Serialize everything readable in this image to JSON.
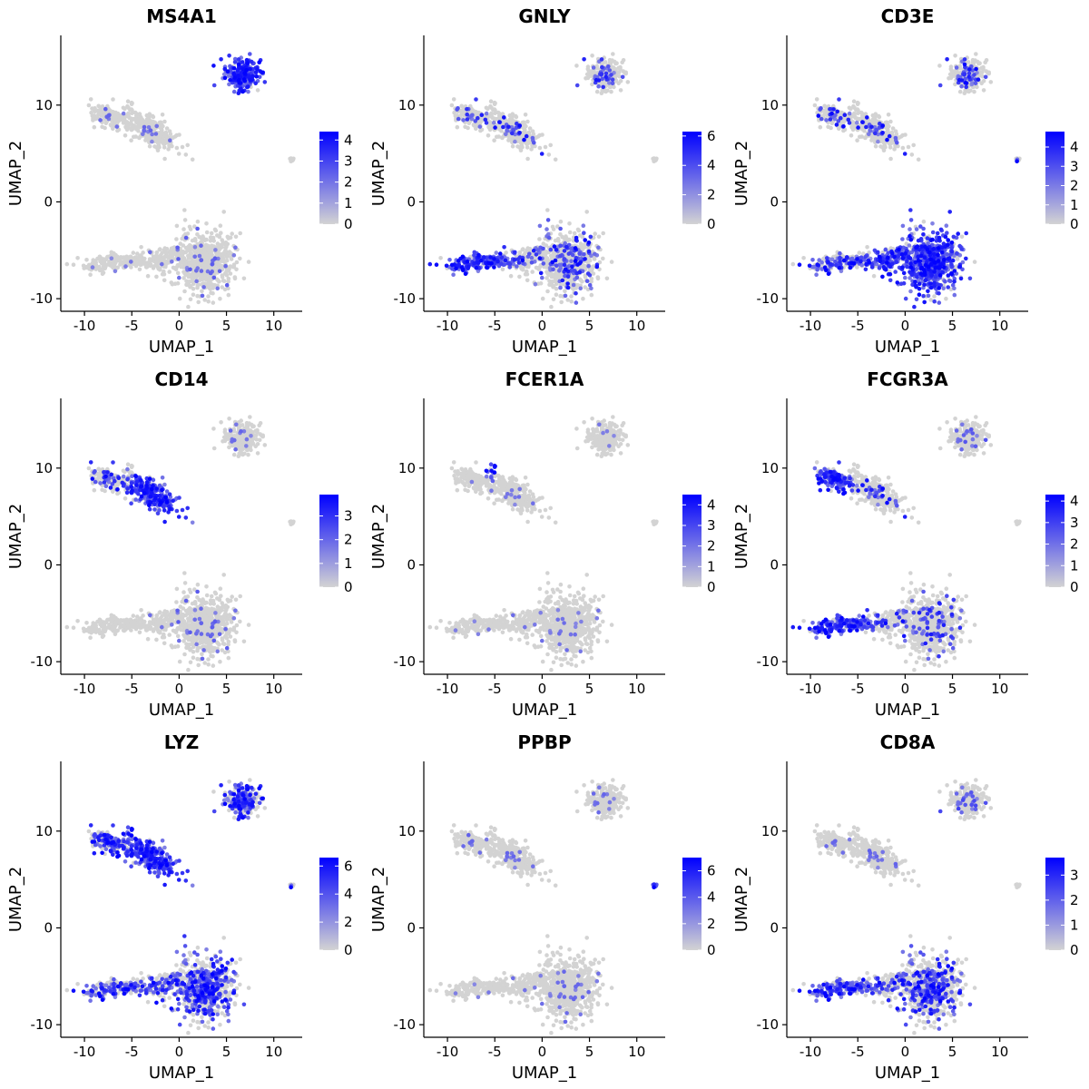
{
  "colors": {
    "low": "#d3d3d3",
    "high": "#0000ff",
    "axis": "#000000"
  },
  "chart_data": [
    {
      "type": "scatter",
      "title": "MS4A1",
      "xlabel": "UMAP_1",
      "ylabel": "UMAP_2",
      "xlim": [
        -12.5,
        13
      ],
      "ylim": [
        -11.3,
        17.2
      ],
      "xticks": [
        -10,
        -5,
        0,
        5,
        10
      ],
      "yticks": [
        -10,
        0,
        10
      ],
      "xtick_labels": [
        "-10",
        "-5",
        "0",
        "5",
        "10"
      ],
      "ytick_labels": [
        "-10",
        "0",
        "10"
      ],
      "legend": {
        "max": 4.4,
        "ticks": [
          0,
          1,
          2,
          3,
          4
        ],
        "labels": [
          "0",
          "1",
          "2",
          "3",
          "4"
        ]
      },
      "expression": {
        "platelet": 0.0,
        "b_cells": 0.9,
        "monocytes": 0.04,
        "mono_tail": 0.05,
        "nk": 0.03,
        "t_cells": 0.05,
        "dc": 0.0
      }
    },
    {
      "type": "scatter",
      "title": "GNLY",
      "xlabel": "UMAP_1",
      "ylabel": "UMAP_2",
      "xlim": [
        -12.5,
        13
      ],
      "ylim": [
        -11.3,
        17.2
      ],
      "xticks": [
        -10,
        -5,
        0,
        5,
        10
      ],
      "yticks": [
        -10,
        0,
        10
      ],
      "xtick_labels": [
        "-10",
        "-5",
        "0",
        "5",
        "10"
      ],
      "ytick_labels": [
        "-10",
        "0",
        "10"
      ],
      "legend": {
        "max": 6.3,
        "ticks": [
          0,
          2,
          4,
          6
        ],
        "labels": [
          "0",
          "2",
          "4",
          "6"
        ]
      },
      "expression": {
        "platelet": 0.0,
        "b_cells": 0.12,
        "monocytes": 0.15,
        "mono_tail": 0.1,
        "nk": 0.85,
        "t_cells": 0.2,
        "dc": 0.0
      }
    },
    {
      "type": "scatter",
      "title": "CD3E",
      "xlabel": "UMAP_1",
      "ylabel": "UMAP_2",
      "xlim": [
        -12.5,
        13
      ],
      "ylim": [
        -11.3,
        17.2
      ],
      "xticks": [
        -10,
        -5,
        0,
        5,
        10
      ],
      "yticks": [
        -10,
        0,
        10
      ],
      "xtick_labels": [
        "-10",
        "-5",
        "0",
        "5",
        "10"
      ],
      "ytick_labels": [
        "-10",
        "0",
        "10"
      ],
      "legend": {
        "max": 4.8,
        "ticks": [
          0,
          1,
          2,
          3,
          4
        ],
        "labels": [
          "0",
          "1",
          "2",
          "3",
          "4"
        ]
      },
      "expression": {
        "platelet": 0.5,
        "b_cells": 0.15,
        "monocytes": 0.15,
        "mono_tail": 0.15,
        "nk": 0.45,
        "t_cells": 0.85,
        "dc": 0.0
      }
    },
    {
      "type": "scatter",
      "title": "CD14",
      "xlabel": "UMAP_1",
      "ylabel": "UMAP_2",
      "xlim": [
        -12.5,
        13
      ],
      "ylim": [
        -11.3,
        17.2
      ],
      "xticks": [
        -10,
        -5,
        0,
        5,
        10
      ],
      "yticks": [
        -10,
        0,
        10
      ],
      "xtick_labels": [
        "-10",
        "-5",
        "0",
        "5",
        "10"
      ],
      "ytick_labels": [
        "-10",
        "0",
        "10"
      ],
      "legend": {
        "max": 3.9,
        "ticks": [
          0,
          1,
          2,
          3
        ],
        "labels": [
          "0",
          "1",
          "2",
          "3"
        ]
      },
      "expression": {
        "platelet": 0.0,
        "b_cells": 0.04,
        "monocytes": 0.85,
        "mono_tail": 0.2,
        "nk": 0.0,
        "t_cells": 0.05,
        "dc": 0.0
      }
    },
    {
      "type": "scatter",
      "title": "FCER1A",
      "xlabel": "UMAP_1",
      "ylabel": "UMAP_2",
      "xlim": [
        -12.5,
        13
      ],
      "ylim": [
        -11.3,
        17.2
      ],
      "xticks": [
        -10,
        -5,
        0,
        5,
        10
      ],
      "yticks": [
        -10,
        0,
        10
      ],
      "xtick_labels": [
        "-10",
        "-5",
        "0",
        "5",
        "10"
      ],
      "ytick_labels": [
        "-10",
        "0",
        "10"
      ],
      "legend": {
        "max": 4.5,
        "ticks": [
          0,
          1,
          2,
          3,
          4
        ],
        "labels": [
          "0",
          "1",
          "2",
          "3",
          "4"
        ]
      },
      "expression": {
        "platelet": 0.0,
        "b_cells": 0.02,
        "monocytes": 0.03,
        "mono_tail": 0.02,
        "nk": 0.02,
        "t_cells": 0.03,
        "dc": 0.9
      }
    },
    {
      "type": "scatter",
      "title": "FCGR3A",
      "xlabel": "UMAP_1",
      "ylabel": "UMAP_2",
      "xlim": [
        -12.5,
        13
      ],
      "ylim": [
        -11.3,
        17.2
      ],
      "xticks": [
        -10,
        -5,
        0,
        5,
        10
      ],
      "yticks": [
        -10,
        0,
        10
      ],
      "xtick_labels": [
        "-10",
        "-5",
        "0",
        "5",
        "10"
      ],
      "ytick_labels": [
        "-10",
        "0",
        "10"
      ],
      "legend": {
        "max": 4.3,
        "ticks": [
          0,
          1,
          2,
          3,
          4
        ],
        "labels": [
          "0",
          "1",
          "2",
          "3",
          "4"
        ]
      },
      "expression": {
        "platelet": 0.0,
        "b_cells": 0.06,
        "monocytes": 0.15,
        "mono_tail": 0.9,
        "nk": 0.85,
        "t_cells": 0.12,
        "dc": 0.0
      }
    },
    {
      "type": "scatter",
      "title": "LYZ",
      "xlabel": "UMAP_1",
      "ylabel": "UMAP_2",
      "xlim": [
        -12.5,
        13
      ],
      "ylim": [
        -11.3,
        17.2
      ],
      "xticks": [
        -10,
        -5,
        0,
        5,
        10
      ],
      "yticks": [
        -10,
        0,
        10
      ],
      "xtick_labels": [
        "-10",
        "-5",
        "0",
        "5",
        "10"
      ],
      "ytick_labels": [
        "-10",
        "0",
        "10"
      ],
      "legend": {
        "max": 6.6,
        "ticks": [
          0,
          2,
          4,
          6
        ],
        "labels": [
          "0",
          "2",
          "4",
          "6"
        ]
      },
      "expression": {
        "platelet": 0.4,
        "b_cells": 0.45,
        "monocytes": 0.9,
        "mono_tail": 0.55,
        "nk": 0.45,
        "t_cells": 0.45,
        "dc": 0.9
      }
    },
    {
      "type": "scatter",
      "title": "PPBP",
      "xlabel": "UMAP_1",
      "ylabel": "UMAP_2",
      "xlim": [
        -12.5,
        13
      ],
      "ylim": [
        -11.3,
        17.2
      ],
      "xticks": [
        -10,
        -5,
        0,
        5,
        10
      ],
      "yticks": [
        -10,
        0,
        10
      ],
      "xtick_labels": [
        "-10",
        "-5",
        "0",
        "5",
        "10"
      ],
      "ytick_labels": [
        "-10",
        "0",
        "10"
      ],
      "legend": {
        "max": 7.0,
        "ticks": [
          0,
          2,
          4,
          6
        ],
        "labels": [
          "0",
          "2",
          "4",
          "6"
        ]
      },
      "expression": {
        "platelet": 0.95,
        "b_cells": 0.04,
        "monocytes": 0.04,
        "mono_tail": 0.05,
        "nk": 0.02,
        "t_cells": 0.04,
        "dc": 0.0
      }
    },
    {
      "type": "scatter",
      "title": "CD8A",
      "xlabel": "UMAP_1",
      "ylabel": "UMAP_2",
      "xlim": [
        -12.5,
        13
      ],
      "ylim": [
        -11.3,
        17.2
      ],
      "xticks": [
        -10,
        -5,
        0,
        5,
        10
      ],
      "yticks": [
        -10,
        0,
        10
      ],
      "xtick_labels": [
        "-10",
        "-5",
        "0",
        "5",
        "10"
      ],
      "ytick_labels": [
        "-10",
        "0",
        "10"
      ],
      "legend": {
        "max": 3.7,
        "ticks": [
          0,
          1,
          2,
          3
        ],
        "labels": [
          "0",
          "1",
          "2",
          "3"
        ]
      },
      "expression": {
        "platelet": 0.0,
        "b_cells": 0.08,
        "monocytes": 0.05,
        "mono_tail": 0.04,
        "nk": 0.6,
        "t_cells": 0.3,
        "dc": 0.0
      }
    }
  ]
}
